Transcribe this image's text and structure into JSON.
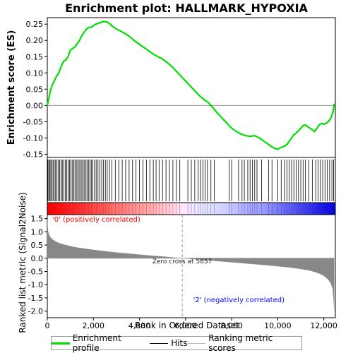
{
  "chart_data": {
    "type": "line",
    "title": "Enrichment plot: HALLMARK_HYPOXIA",
    "xlabel": "Rank in Ordered Dataset",
    "top_ylabel": "Enrichment score (ES)",
    "bottom_ylabel": "Ranked list metric (Signal2Noise)",
    "x_range": [
      0,
      12500
    ],
    "x_ticks": [
      0,
      2000,
      4000,
      6000,
      8000,
      10000,
      12000
    ],
    "x_tick_labels": [
      "0",
      "2,000",
      "4,000",
      "6,000",
      "8,000",
      "10,000",
      "12,000"
    ],
    "es_ylim": [
      -0.16,
      0.27
    ],
    "es_ticks": [
      0.25,
      0.2,
      0.15,
      0.1,
      0.05,
      0.0,
      -0.05,
      -0.1,
      -0.15
    ],
    "es_tick_labels": [
      "0.25",
      "0.20",
      "0.15",
      "0.10",
      "0.05",
      "0.00",
      "-0.05",
      "-0.10",
      "-0.15"
    ],
    "metric_ylim": [
      -2.25,
      1.65
    ],
    "metric_ticks": [
      1.5,
      1.0,
      0.5,
      0.0,
      -0.5,
      -1.0,
      -1.5,
      -2.0
    ],
    "metric_tick_labels": [
      "1.5",
      "1.0",
      "0.5",
      "0.0",
      "-0.5",
      "-1.0",
      "-1.5",
      "-2.0"
    ],
    "enrichment_profile": {
      "name": "Enrichment profile",
      "color": "#00dd00",
      "x": [
        0,
        60,
        120,
        200,
        300,
        400,
        500,
        600,
        700,
        800,
        900,
        1000,
        1100,
        1200,
        1300,
        1400,
        1500,
        1600,
        1700,
        1800,
        1900,
        2000,
        2100,
        2200,
        2300,
        2400,
        2500,
        2600,
        2700,
        2800,
        3000,
        3200,
        3400,
        3600,
        3800,
        4000,
        4200,
        4400,
        4600,
        4800,
        5000,
        5200,
        5400,
        5600,
        5800,
        6000,
        6200,
        6400,
        6600,
        6800,
        7000,
        7200,
        7400,
        7600,
        7800,
        8000,
        8200,
        8400,
        8600,
        8800,
        9000,
        9200,
        9400,
        9600,
        9800,
        10000,
        10100,
        10200,
        10300,
        10400,
        10500,
        10600,
        10700,
        10800,
        10900,
        11000,
        11100,
        11200,
        11300,
        11400,
        11500,
        11600,
        11700,
        11800,
        11900,
        12000,
        12100,
        12200,
        12300,
        12400,
        12450
      ],
      "y": [
        0.0,
        0.02,
        0.04,
        0.06,
        0.075,
        0.09,
        0.1,
        0.12,
        0.135,
        0.14,
        0.15,
        0.17,
        0.175,
        0.18,
        0.19,
        0.2,
        0.215,
        0.225,
        0.235,
        0.24,
        0.24,
        0.245,
        0.25,
        0.252,
        0.255,
        0.257,
        0.258,
        0.256,
        0.252,
        0.245,
        0.235,
        0.228,
        0.22,
        0.21,
        0.198,
        0.188,
        0.178,
        0.168,
        0.158,
        0.15,
        0.143,
        0.132,
        0.12,
        0.105,
        0.09,
        0.075,
        0.06,
        0.045,
        0.03,
        0.018,
        0.008,
        -0.008,
        -0.025,
        -0.04,
        -0.055,
        -0.07,
        -0.08,
        -0.088,
        -0.093,
        -0.095,
        -0.093,
        -0.1,
        -0.11,
        -0.12,
        -0.13,
        -0.135,
        -0.13,
        -0.128,
        -0.125,
        -0.12,
        -0.11,
        -0.1,
        -0.09,
        -0.085,
        -0.078,
        -0.07,
        -0.062,
        -0.06,
        -0.065,
        -0.07,
        -0.075,
        -0.08,
        -0.07,
        -0.06,
        -0.055,
        -0.058,
        -0.055,
        -0.05,
        -0.04,
        -0.02,
        0.005
      ]
    },
    "hits": {
      "name": "Hits",
      "color": "#000000",
      "x": [
        20,
        60,
        110,
        150,
        200,
        250,
        300,
        360,
        420,
        480,
        540,
        600,
        650,
        720,
        780,
        840,
        900,
        960,
        1020,
        1080,
        1150,
        1200,
        1260,
        1320,
        1380,
        1440,
        1500,
        1560,
        1620,
        1680,
        1740,
        1800,
        1860,
        1920,
        1980,
        2050,
        2120,
        2200,
        2280,
        2360,
        2440,
        2520,
        2600,
        2700,
        2800,
        2950,
        3100,
        3250,
        3400,
        3550,
        3700,
        3850,
        4000,
        4150,
        4300,
        4450,
        4600,
        4720,
        4850,
        5000,
        5150,
        5300,
        5450,
        5600,
        5750,
        6100,
        6250,
        6400,
        6550,
        6650,
        6750,
        6850,
        6950,
        7100,
        7250,
        7900,
        8000,
        8300,
        8450,
        8550,
        8700,
        8800,
        8900,
        9000,
        9100,
        9300,
        9600,
        9750,
        10000,
        10150,
        10300,
        10400,
        10500,
        10600,
        10700,
        10800,
        10900,
        11000,
        11100,
        11200,
        11350,
        11500,
        11650,
        11750,
        11850,
        11950,
        12050,
        12150,
        12250,
        12350,
        12420
      ]
    },
    "ranking_metric": {
      "name": "Ranking metric scores",
      "color": "#888888",
      "x": [
        0,
        30,
        80,
        150,
        250,
        400,
        600,
        900,
        1200,
        1600,
        2000,
        2500,
        3000,
        3500,
        4000,
        4500,
        5000,
        5500,
        5857,
        6200,
        6800,
        7500,
        8200,
        9000,
        9800,
        10500,
        11000,
        11400,
        11700,
        11900,
        12050,
        12200,
        12300,
        12380,
        12420,
        12450
      ],
      "y": [
        1.6,
        1.05,
        0.88,
        0.78,
        0.7,
        0.62,
        0.55,
        0.48,
        0.42,
        0.37,
        0.32,
        0.27,
        0.22,
        0.18,
        0.14,
        0.1,
        0.07,
        0.03,
        0.0,
        -0.03,
        -0.07,
        -0.12,
        -0.17,
        -0.23,
        -0.29,
        -0.35,
        -0.41,
        -0.47,
        -0.55,
        -0.62,
        -0.7,
        -0.82,
        -0.95,
        -1.15,
        -1.6,
        -2.1
      ]
    },
    "zero_cross_label": "Zero cross at 5857",
    "zero_cross": 5857,
    "positive_label": "'0' (positively correlated)",
    "negative_label": "'2' (negatively correlated)",
    "positive_color": "#ff0000",
    "negative_color": "#0000ff"
  },
  "legend": {
    "enrichment_profile": "Enrichment profile",
    "hits": "Hits",
    "ranking_metric": "Ranking metric scores"
  }
}
